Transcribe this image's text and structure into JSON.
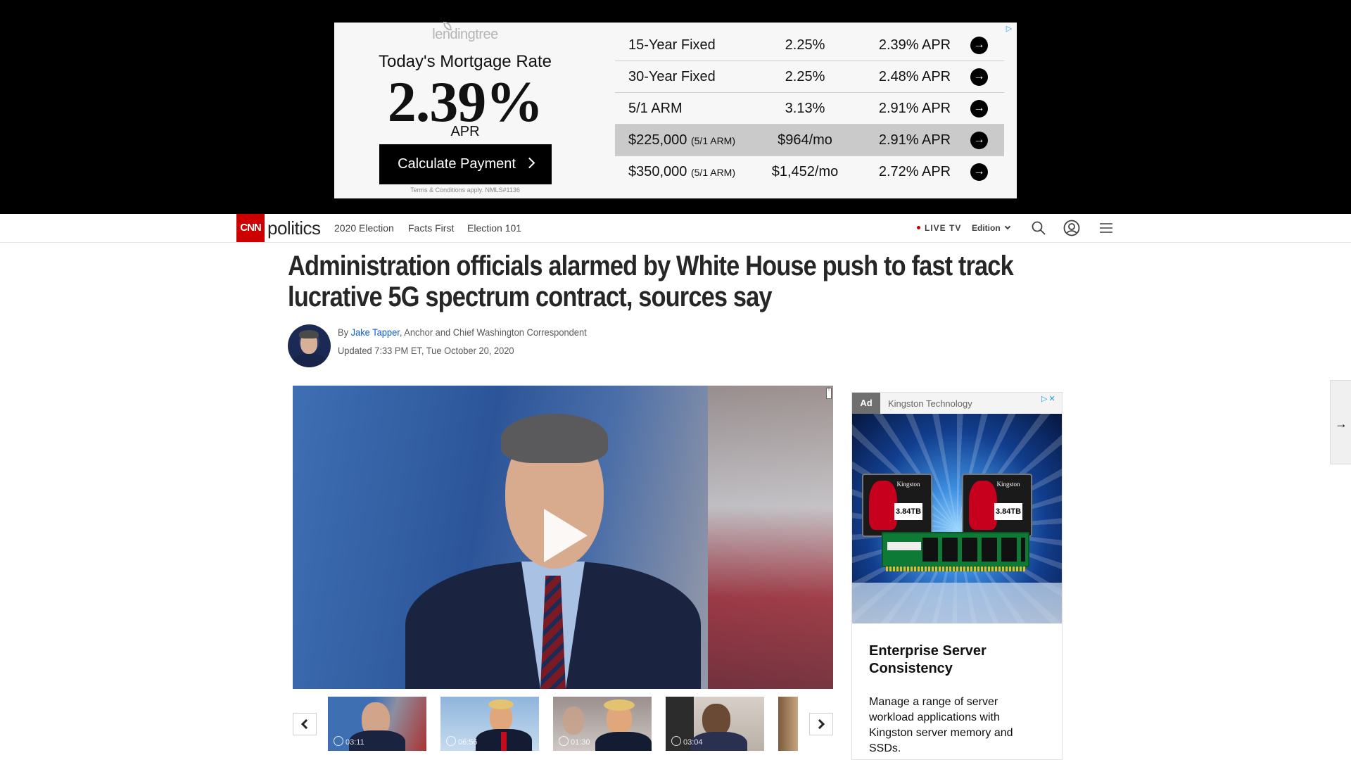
{
  "top_ad": {
    "brand": "lendingtree",
    "title": "Today's Mortgage Rate",
    "rate": "2.39%",
    "rate_unit": "APR",
    "button_label": "Calculate Payment",
    "terms": "Terms & Conditions apply. NMLS#1136",
    "rows": [
      {
        "label": "15-Year Fixed",
        "label_note": "",
        "rate": "2.25%",
        "apr": "2.39% APR",
        "highlighted": false
      },
      {
        "label": "30-Year Fixed",
        "label_note": "",
        "rate": "2.25%",
        "apr": "2.48% APR",
        "highlighted": false
      },
      {
        "label": "5/1 ARM",
        "label_note": "",
        "rate": "3.13%",
        "apr": "2.91% APR",
        "highlighted": false
      },
      {
        "label": "$225,000",
        "label_note": "(5/1 ARM)",
        "rate": "$964/mo",
        "apr": "2.91% APR",
        "highlighted": true
      },
      {
        "label": "$350,000",
        "label_note": "(5/1 ARM)",
        "rate": "$1,452/mo",
        "apr": "2.72% APR",
        "highlighted": false
      }
    ]
  },
  "nav": {
    "logo": "CNN",
    "section": "politics",
    "links": [
      "2020 Election",
      "Facts First",
      "Election 101"
    ],
    "live_tv": "LIVE TV",
    "edition": "Edition",
    "icons": [
      "search-icon",
      "user-icon",
      "menu-icon"
    ]
  },
  "article": {
    "headline": "Administration officials alarmed by White House push to fast track lucrative 5G spectrum contract, sources say",
    "by_prefix": "By ",
    "author": "Jake Tapper",
    "author_title": ", Anchor and Chief Washington Correspondent",
    "updated": "Updated 7:33 PM ET, Tue October 20, 2020"
  },
  "video": {
    "thumbnails": [
      {
        "duration": "03:11"
      },
      {
        "duration": "06:56"
      },
      {
        "duration": "01:30"
      },
      {
        "duration": "03:04"
      }
    ]
  },
  "side_ad": {
    "tag": "Ad",
    "advertiser": "Kingston Technology",
    "title": "Enterprise Server Consistency",
    "body": "Manage a range of server workload applications with Kingston server memory and SSDs.",
    "product_brand": "Kingston",
    "ssd_capacity": "3.84TB"
  },
  "colors": {
    "cnn_red": "#cc0000",
    "link_blue": "#0c5dc9",
    "ad_band": "#000000"
  }
}
